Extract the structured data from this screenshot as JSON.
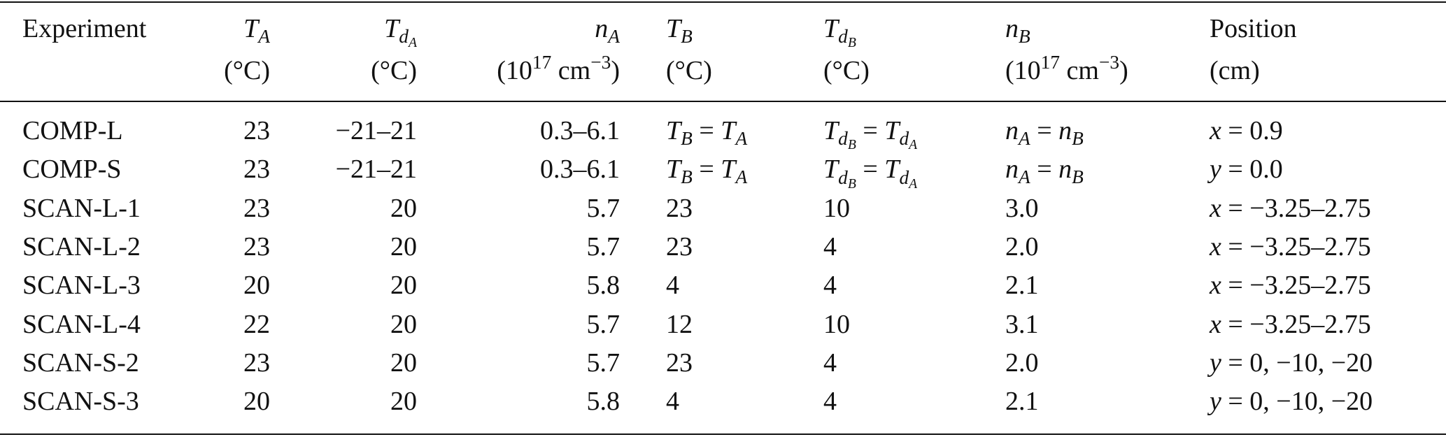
{
  "table": {
    "header": [
      {
        "label": "Experiment"
      },
      {
        "label": [
          {
            "it": "T"
          },
          {
            "sub": [
              {
                "it": "A"
              }
            ]
          }
        ],
        "unit": "(°C)"
      },
      {
        "label": [
          {
            "it": "T"
          },
          {
            "sub": [
              {
                "it": "d"
              },
              {
                "sub": [
                  {
                    "it": "A"
                  }
                ]
              }
            ]
          }
        ],
        "unit": "(°C)"
      },
      {
        "label": [
          {
            "it": "n"
          },
          {
            "sub": [
              {
                "it": "A"
              }
            ]
          }
        ],
        "unit": [
          "(10",
          {
            "sup": "17"
          },
          " cm",
          {
            "sup": "−3"
          },
          ")"
        ]
      },
      {
        "label": [
          {
            "it": "T"
          },
          {
            "sub": [
              {
                "it": "B"
              }
            ]
          }
        ],
        "unit": "(°C)"
      },
      {
        "label": [
          {
            "it": "T"
          },
          {
            "sub": [
              {
                "it": "d"
              },
              {
                "sub": [
                  {
                    "it": "B"
                  }
                ]
              }
            ]
          }
        ],
        "unit": "(°C)"
      },
      {
        "label": [
          {
            "it": "n"
          },
          {
            "sub": [
              {
                "it": "B"
              }
            ]
          }
        ],
        "unit": [
          "(10",
          {
            "sup": "17"
          },
          " cm",
          {
            "sup": "−3"
          },
          ")"
        ]
      },
      {
        "label": "Position",
        "unit": "(cm)"
      }
    ],
    "rows": [
      [
        "COMP-L",
        "23",
        "−21–21",
        "0.3–6.1",
        [
          {
            "it": "T"
          },
          {
            "sub": [
              {
                "it": "B"
              }
            ]
          },
          " = ",
          {
            "it": "T"
          },
          {
            "sub": [
              {
                "it": "A"
              }
            ]
          }
        ],
        [
          {
            "it": "T"
          },
          {
            "sub": [
              {
                "it": "d"
              },
              {
                "sub": [
                  {
                    "it": "B"
                  }
                ]
              }
            ]
          },
          " = ",
          {
            "it": "T"
          },
          {
            "sub": [
              {
                "it": "d"
              },
              {
                "sub": [
                  {
                    "it": "A"
                  }
                ]
              }
            ]
          }
        ],
        [
          {
            "it": "n"
          },
          {
            "sub": [
              {
                "it": "A"
              }
            ]
          },
          " = ",
          {
            "it": "n"
          },
          {
            "sub": [
              {
                "it": "B"
              }
            ]
          }
        ],
        [
          {
            "it": "x"
          },
          " = 0.9"
        ]
      ],
      [
        "COMP-S",
        "23",
        "−21–21",
        "0.3–6.1",
        [
          {
            "it": "T"
          },
          {
            "sub": [
              {
                "it": "B"
              }
            ]
          },
          " = ",
          {
            "it": "T"
          },
          {
            "sub": [
              {
                "it": "A"
              }
            ]
          }
        ],
        [
          {
            "it": "T"
          },
          {
            "sub": [
              {
                "it": "d"
              },
              {
                "sub": [
                  {
                    "it": "B"
                  }
                ]
              }
            ]
          },
          " = ",
          {
            "it": "T"
          },
          {
            "sub": [
              {
                "it": "d"
              },
              {
                "sub": [
                  {
                    "it": "A"
                  }
                ]
              }
            ]
          }
        ],
        [
          {
            "it": "n"
          },
          {
            "sub": [
              {
                "it": "A"
              }
            ]
          },
          " = ",
          {
            "it": "n"
          },
          {
            "sub": [
              {
                "it": "B"
              }
            ]
          }
        ],
        [
          {
            "it": "y"
          },
          " = 0.0"
        ]
      ],
      [
        "SCAN-L-1",
        "23",
        "20",
        "5.7",
        "23",
        "10",
        "3.0",
        [
          {
            "it": "x"
          },
          " = −3.25–2.75"
        ]
      ],
      [
        "SCAN-L-2",
        "23",
        "20",
        "5.7",
        "23",
        "4",
        "2.0",
        [
          {
            "it": "x"
          },
          " = −3.25–2.75"
        ]
      ],
      [
        "SCAN-L-3",
        "20",
        "20",
        "5.8",
        "4",
        "4",
        "2.1",
        [
          {
            "it": "x"
          },
          " = −3.25–2.75"
        ]
      ],
      [
        "SCAN-L-4",
        "22",
        "20",
        "5.7",
        "12",
        "10",
        "3.1",
        [
          {
            "it": "x"
          },
          " = −3.25–2.75"
        ]
      ],
      [
        "SCAN-S-2",
        "23",
        "20",
        "5.7",
        "23",
        "4",
        "2.0",
        [
          {
            "it": "y"
          },
          " = 0, −10, −20"
        ]
      ],
      [
        "SCAN-S-3",
        "20",
        "20",
        "5.8",
        "4",
        "4",
        "2.1",
        [
          {
            "it": "y"
          },
          " = 0, −10, −20"
        ]
      ]
    ]
  }
}
